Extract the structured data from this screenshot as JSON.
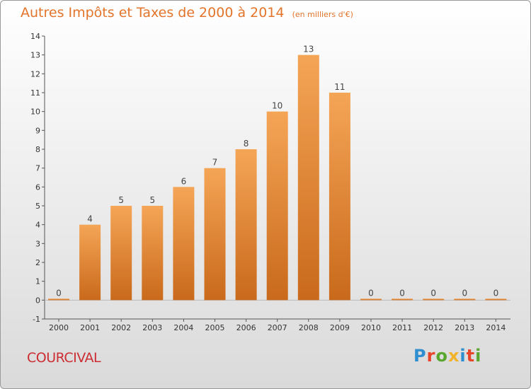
{
  "title": "Autres Impôts et Taxes de 2000 à 2014",
  "subtitle": "(en milliers d'€)",
  "commune": "COURCIVAL",
  "logo": "Proxiti",
  "colors": {
    "bar_light": "#f5a556",
    "bar_dark": "#c9691b",
    "title": "#e2742b",
    "commune": "#cc2d33"
  },
  "chart_data": {
    "type": "bar",
    "title": "Autres Impôts et Taxes de 2000 à 2014",
    "subtitle": "(en milliers d'€)",
    "categories": [
      "2000",
      "2001",
      "2002",
      "2003",
      "2004",
      "2005",
      "2006",
      "2007",
      "2008",
      "2009",
      "2010",
      "2011",
      "2012",
      "2013",
      "2014"
    ],
    "values": [
      0,
      4,
      5,
      5,
      6,
      7,
      8,
      10,
      13,
      11,
      0,
      0,
      0,
      0,
      0
    ],
    "ylim": [
      -1,
      14
    ],
    "yticks": [
      -1,
      0,
      1,
      2,
      3,
      4,
      5,
      6,
      7,
      8,
      9,
      10,
      11,
      12,
      13,
      14
    ],
    "xlabel": "",
    "ylabel": "",
    "grid": false
  }
}
